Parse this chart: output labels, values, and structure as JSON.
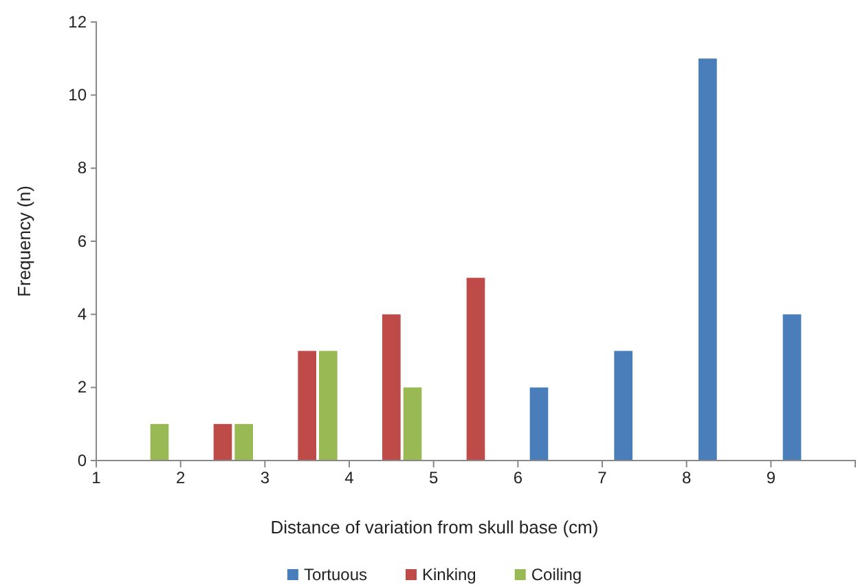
{
  "chart_data": {
    "type": "bar",
    "x": [
      1.5,
      2.5,
      3.5,
      4.5,
      5.5,
      6.5,
      7.5,
      8.5,
      9.5
    ],
    "series": [
      {
        "name": "Tortuous",
        "color": "#4a7ebb",
        "values": [
          null,
          null,
          null,
          null,
          null,
          2,
          3,
          11,
          4
        ]
      },
      {
        "name": "Kinking",
        "color": "#be4b48",
        "values": [
          null,
          1,
          3,
          4,
          5,
          null,
          null,
          null,
          null
        ]
      },
      {
        "name": "Coiling",
        "color": "#98b954",
        "values": [
          1,
          1,
          3,
          2,
          null,
          null,
          null,
          null,
          null
        ]
      }
    ],
    "xlabel": "Distance of variation from skull base (cm)",
    "ylabel": "Frequency (n)",
    "xlim": [
      1,
      10
    ],
    "xticks": [
      1,
      2,
      3,
      4,
      5,
      6,
      7,
      8,
      9
    ],
    "ylim": [
      0,
      12
    ],
    "yticks": [
      0,
      2,
      4,
      6,
      8,
      10,
      12
    ],
    "grid": false,
    "legend": "bottom"
  }
}
